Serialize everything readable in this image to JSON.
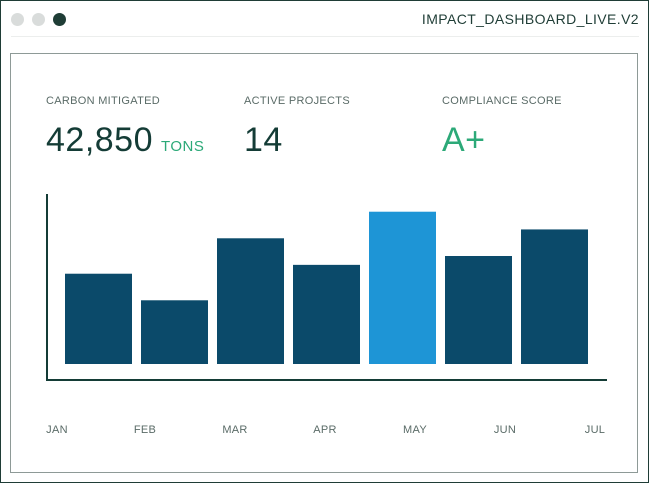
{
  "window": {
    "title": "IMPACT_DASHBOARD_LIVE.V2"
  },
  "metrics": [
    {
      "label": "CARBON MITIGATED",
      "value": "42,850",
      "unit": "TONS"
    },
    {
      "label": "ACTIVE PROJECTS",
      "value": "14"
    },
    {
      "label": "COMPLIANCE SCORE",
      "value": "A+"
    }
  ],
  "colors": {
    "bar": "#0b4a6a",
    "bar_highlight": "#1e95d6",
    "accent": "#2ca978",
    "axis": "#143c36"
  },
  "chart_data": {
    "type": "bar",
    "categories": [
      "JAN",
      "FEB",
      "MAR",
      "APR",
      "MAY",
      "JUN",
      "JUL"
    ],
    "values": [
      48,
      36,
      64,
      52,
      76,
      56,
      68
    ],
    "highlight_index": 4,
    "ylim": [
      0,
      84
    ],
    "grid": false,
    "title": "",
    "xlabel": "",
    "ylabel": ""
  }
}
